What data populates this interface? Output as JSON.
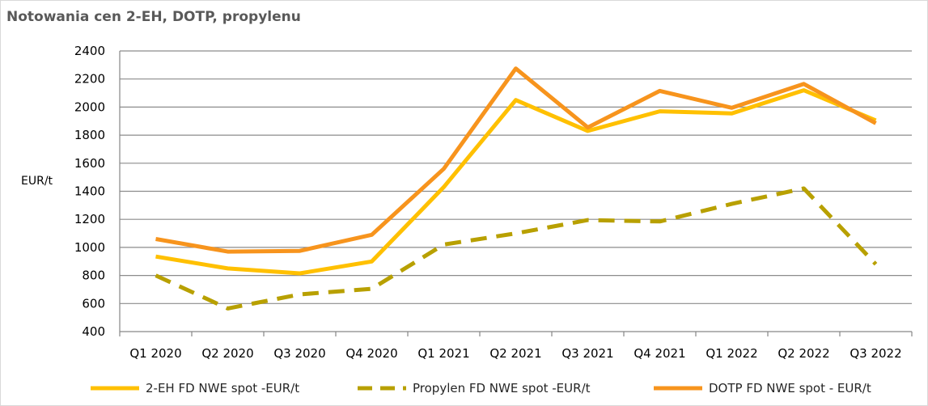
{
  "chart_data": {
    "type": "line",
    "title": "Notowania cen 2-EH, DOTP, propylenu",
    "ylabel": "EUR/t",
    "xlabel": "",
    "ylim": [
      400,
      2400
    ],
    "yticks": [
      400,
      600,
      800,
      1000,
      1200,
      1400,
      1600,
      1800,
      2000,
      2200,
      2400
    ],
    "grid": true,
    "legend_position": "bottom",
    "categories": [
      "Q1 2020",
      "Q2 2020",
      "Q3 2020",
      "Q4 2020",
      "Q1 2021",
      "Q2 2021",
      "Q3 2021",
      "Q4 2021",
      "Q1 2022",
      "Q2 2022",
      "Q3 2022"
    ],
    "series": [
      {
        "name": "2-EH FD NWE spot  -EUR/t",
        "color": "#FFC000",
        "dash": "solid",
        "values": [
          935,
          850,
          815,
          900,
          1430,
          2050,
          1830,
          1970,
          1955,
          2120,
          1905
        ]
      },
      {
        "name": "Propylen FD NWE spot -EUR/t",
        "color": "#B8A000",
        "dash": "dashed",
        "values": [
          800,
          565,
          665,
          705,
          1020,
          1100,
          1195,
          1185,
          1310,
          1420,
          880
        ]
      },
      {
        "name": "DOTP FD NWE spot - EUR/t",
        "color": "#F7941D",
        "dash": "solid",
        "values": [
          1060,
          970,
          975,
          1090,
          1560,
          2275,
          1855,
          2115,
          1995,
          2165,
          1885
        ]
      }
    ]
  }
}
